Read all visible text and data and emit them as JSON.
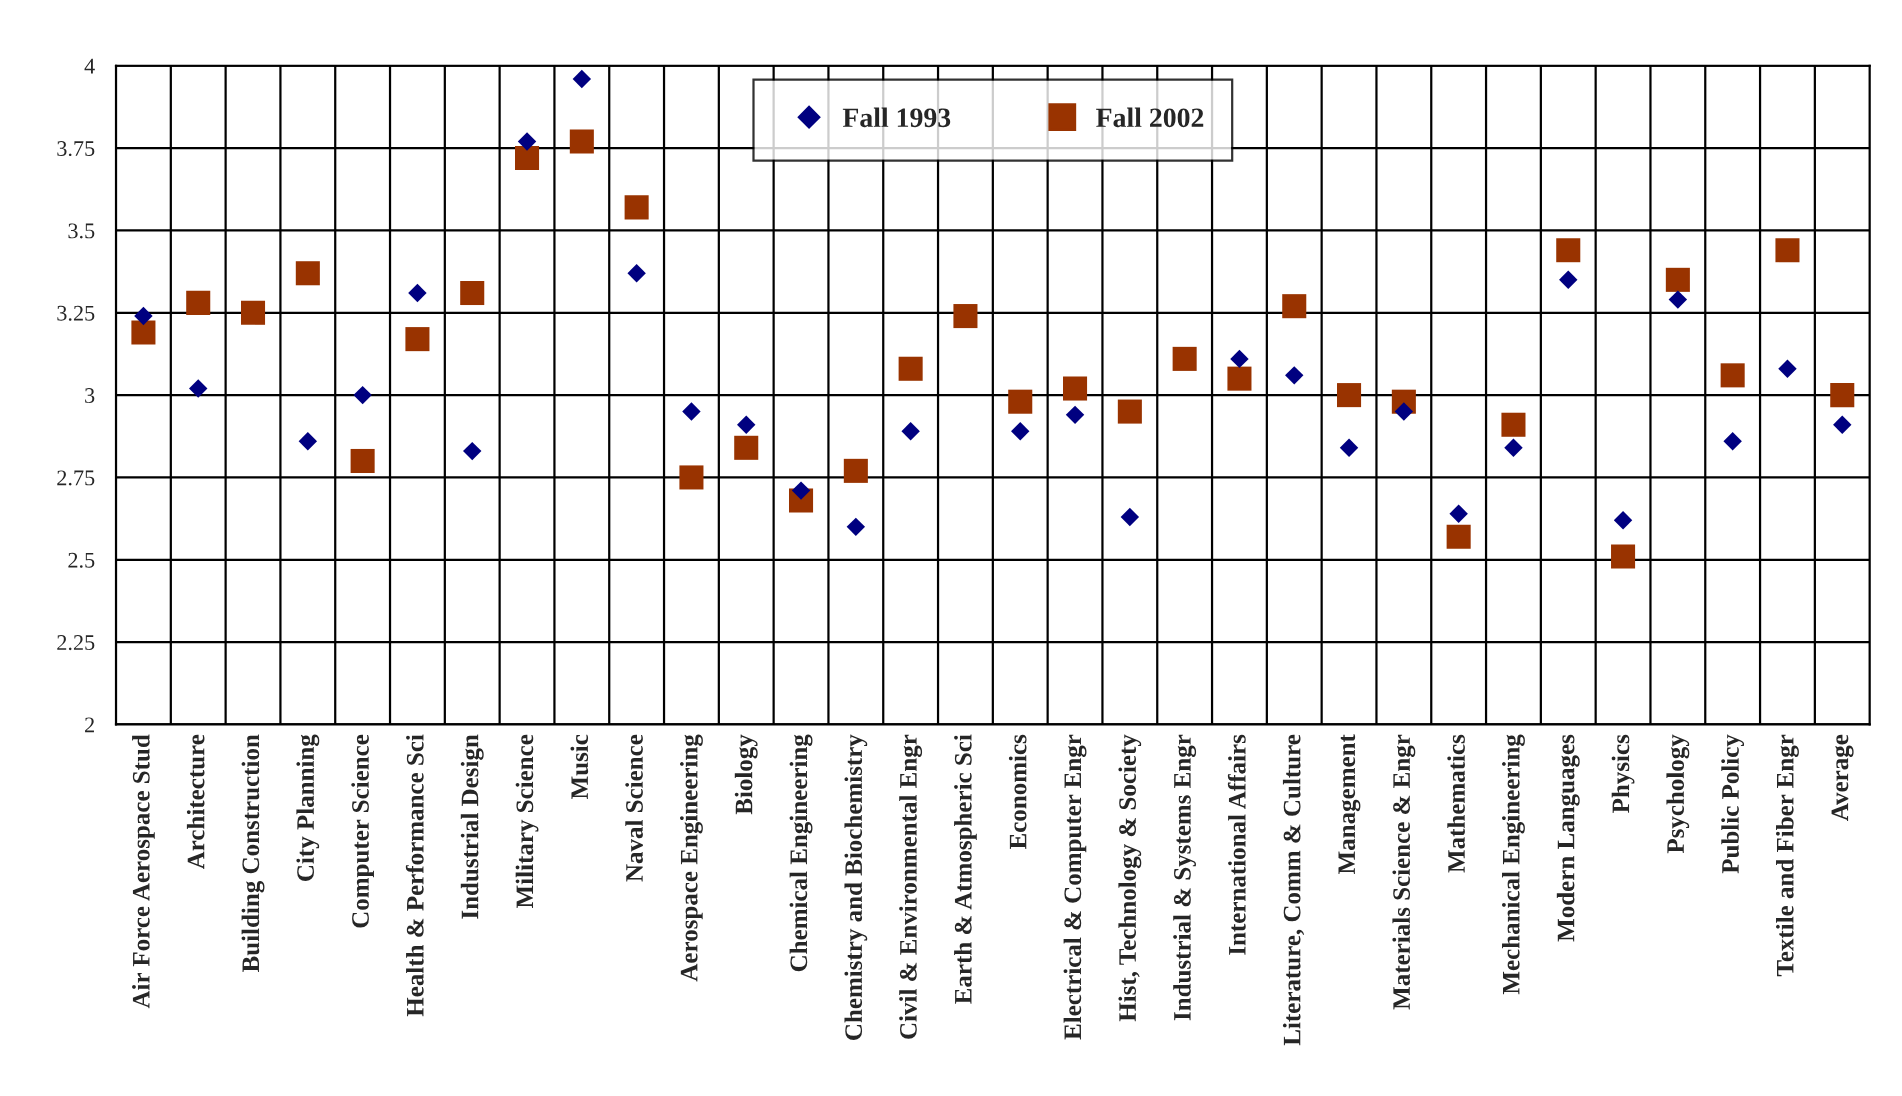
{
  "chart_data": {
    "type": "scatter",
    "categories": [
      "Air Force Aerospace Stud",
      "Architecture",
      "Building Construction",
      "City Planning",
      "Computer Science",
      "Health & Performance Sci",
      "Industrial Design",
      "Military Science",
      "Music",
      "Naval Science",
      "Aerospace Engineering",
      "Biology",
      "Chemical Engineering",
      "Chemistry and Biochemistry",
      "Civil & Environmental Engr",
      "Earth & Atmospheric Sci",
      "Economics",
      "Electrical & Computer Engr",
      "Hist, Technology & Society",
      "Industrial & Systems Engr",
      "International Affairs",
      "Literature, Comm & Culture",
      "Management",
      "Materials Science & Engr",
      "Mathematics",
      "Mechanical Engineering",
      "Modern Languages",
      "Physics",
      "Psychology",
      "Public Policy",
      "Textile and Fiber Engr",
      "Average"
    ],
    "series": [
      {
        "name": "Fall 1993",
        "color": "#000080",
        "marker": "diamond",
        "values": [
          3.24,
          3.02,
          null,
          2.86,
          3.0,
          3.31,
          2.83,
          3.77,
          3.96,
          3.37,
          2.95,
          2.91,
          2.71,
          2.6,
          2.89,
          null,
          2.89,
          2.94,
          2.63,
          null,
          3.11,
          3.06,
          2.84,
          2.95,
          2.64,
          2.84,
          3.35,
          2.62,
          3.29,
          2.86,
          3.08,
          2.91
        ]
      },
      {
        "name": "Fall 2002",
        "color": "#993300",
        "marker": "square",
        "values": [
          3.19,
          3.28,
          3.25,
          3.37,
          2.8,
          3.17,
          3.31,
          3.72,
          3.77,
          3.57,
          2.75,
          2.84,
          2.68,
          2.77,
          3.08,
          3.24,
          2.98,
          3.02,
          2.95,
          3.11,
          3.05,
          3.27,
          3.0,
          2.98,
          2.57,
          2.91,
          3.44,
          2.51,
          3.35,
          3.06,
          3.44,
          3.0
        ]
      }
    ],
    "ylim": [
      2,
      4
    ],
    "yticks": [
      2,
      2.25,
      2.5,
      2.75,
      3,
      3.25,
      3.5,
      3.75,
      4
    ],
    "grid": true,
    "legend": "top"
  }
}
